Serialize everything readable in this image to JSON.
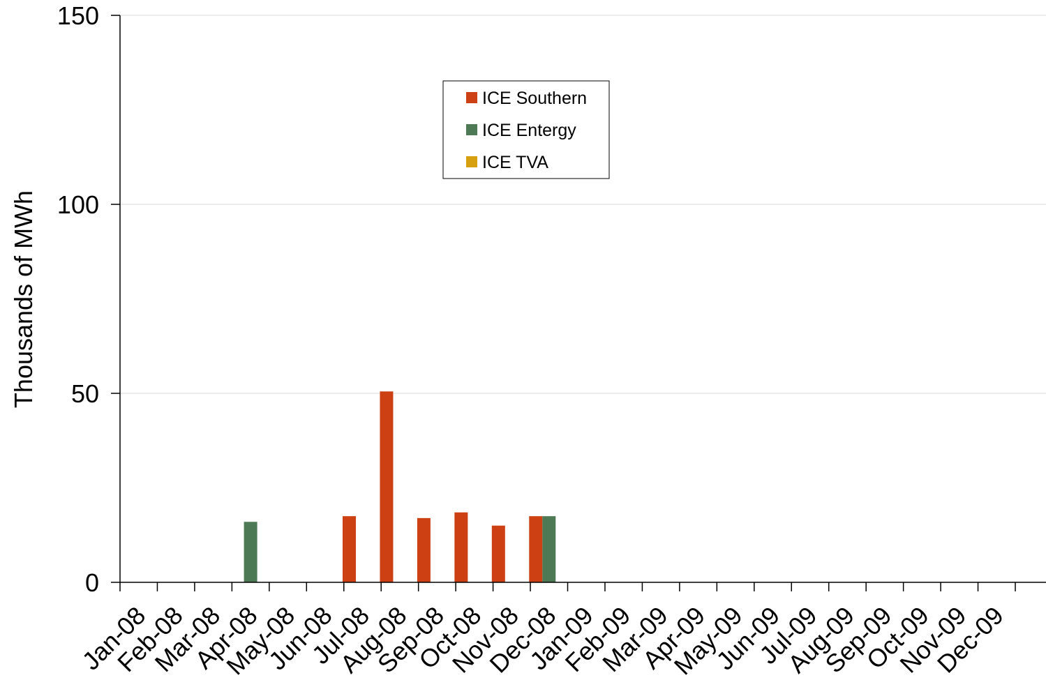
{
  "chart_data": {
    "type": "bar",
    "title": "",
    "xlabel": "",
    "ylabel": "Thousands of MWh",
    "ylim": [
      0,
      150
    ],
    "yticks": [
      0,
      50,
      100,
      150
    ],
    "grid": true,
    "legend_position": "top-center",
    "categories": [
      "Jan-08",
      "Feb-08",
      "Mar-08",
      "Apr-08",
      "May-08",
      "Jun-08",
      "Jul-08",
      "Aug-08",
      "Sep-08",
      "Oct-08",
      "Nov-08",
      "Dec-08",
      "Jan-09",
      "Feb-09",
      "Mar-09",
      "Apr-09",
      "May-09",
      "Jun-09",
      "Jul-09",
      "Aug-09",
      "Sep-09",
      "Oct-09",
      "Nov-09",
      "Dec-09"
    ],
    "series": [
      {
        "name": "ICE Southern",
        "color": "#cc4014",
        "values": [
          0,
          0,
          0,
          0,
          0,
          0,
          17.5,
          50.5,
          17,
          18.5,
          15,
          17.5,
          0,
          0,
          0,
          0,
          0,
          0,
          0,
          0,
          0,
          0,
          0,
          0
        ]
      },
      {
        "name": "ICE Entergy",
        "color": "#4d7a54",
        "values": [
          0,
          0,
          0,
          16,
          0,
          0,
          0,
          0,
          0,
          0,
          0,
          17.5,
          0,
          0,
          0,
          0,
          0,
          0,
          0,
          0,
          0,
          0,
          0,
          0
        ]
      },
      {
        "name": "ICE TVA",
        "color": "#d6a010",
        "values": [
          0,
          0,
          0,
          0,
          0,
          0,
          0,
          0,
          0,
          0,
          0,
          0,
          0,
          0,
          0,
          0,
          0,
          0,
          0,
          0,
          0,
          0,
          0,
          0
        ]
      }
    ]
  }
}
